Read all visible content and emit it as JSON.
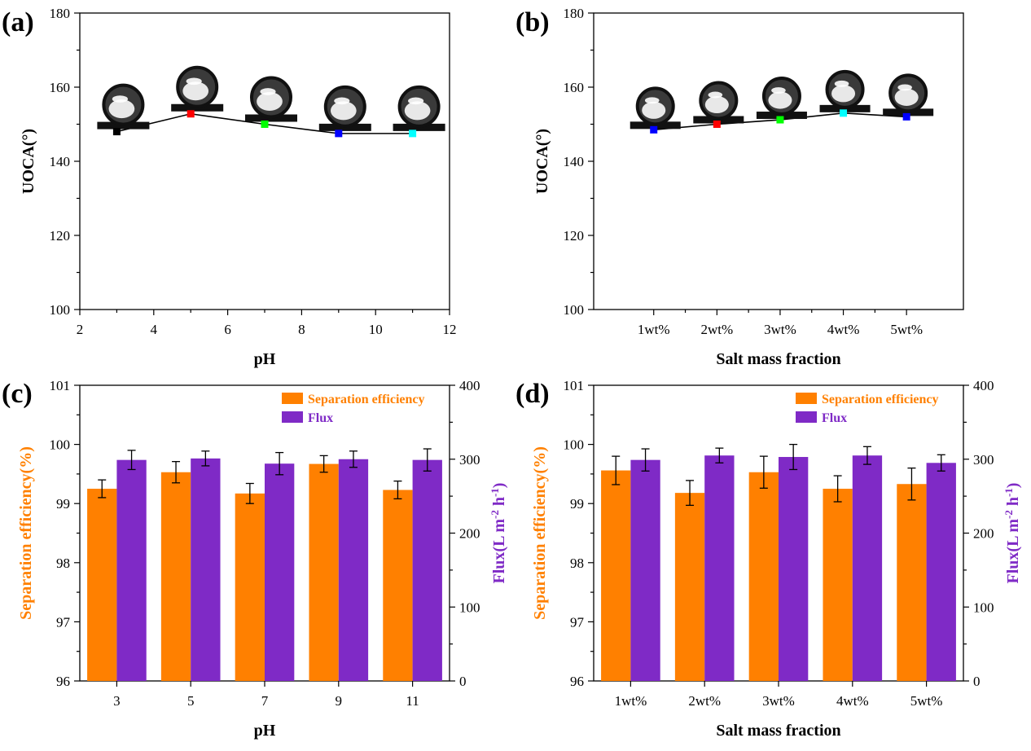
{
  "colors": {
    "orange": "#FF8000",
    "purple": "#7F2AC6",
    "black": "#000000"
  },
  "chart_data": [
    {
      "panel": "(a)",
      "type": "line",
      "xlabel": "pH",
      "ylabel": "UOCA(°)",
      "xlim": [
        2,
        12
      ],
      "ylim": [
        100,
        180
      ],
      "xticks": [
        "2",
        "4",
        "6",
        "8",
        "10",
        "12"
      ],
      "yticks": [
        "100",
        "120",
        "140",
        "160",
        "180"
      ],
      "x": [
        3,
        5,
        7,
        9,
        11
      ],
      "values": [
        148,
        152.8,
        150,
        147.5,
        147.5
      ],
      "marker_colors": [
        "#000000",
        "#FF0000",
        "#00FF00",
        "#0000FF",
        "#00FFFF"
      ],
      "insets": "droplet-photo"
    },
    {
      "panel": "(b)",
      "type": "line",
      "xlabel": "Salt mass fraction",
      "ylabel": "UOCA(°)",
      "ylim": [
        100,
        180
      ],
      "yticks": [
        "100",
        "120",
        "140",
        "160",
        "180"
      ],
      "categories": [
        "1wt%",
        "2wt%",
        "3wt%",
        "4wt%",
        "5wt%"
      ],
      "values": [
        148.5,
        150,
        151.2,
        153,
        152
      ],
      "marker_colors": [
        "#0000FF",
        "#FF0000",
        "#00FF00",
        "#00FFFF",
        "#0000FF"
      ],
      "insets": "droplet-photo"
    },
    {
      "panel": "(c)",
      "type": "bar",
      "xlabel": "pH",
      "ylabel": "Separation efficiency(%)",
      "y2label": "Flux(L m⁻² h⁻¹)",
      "ylim": [
        96,
        101
      ],
      "y2lim": [
        0,
        400
      ],
      "yticks": [
        "96",
        "97",
        "98",
        "99",
        "100",
        "101"
      ],
      "y2ticks": [
        "0",
        "100",
        "200",
        "300",
        "400"
      ],
      "categories": [
        "3",
        "5",
        "7",
        "9",
        "11"
      ],
      "series": [
        {
          "name": "Separation efficiency",
          "axis": "left",
          "values": [
            99.25,
            99.53,
            99.17,
            99.67,
            99.23
          ],
          "errors": [
            0.15,
            0.18,
            0.17,
            0.14,
            0.15
          ]
        },
        {
          "name": "Flux",
          "axis": "right",
          "values": [
            299,
            301,
            294,
            300,
            299
          ],
          "errors": [
            13,
            10,
            15,
            11,
            15
          ]
        }
      ]
    },
    {
      "panel": "(d)",
      "type": "bar",
      "xlabel": "Salt mass fraction",
      "ylabel": "Separation efficiency(%)",
      "y2label": "Flux(L m⁻² h⁻¹)",
      "ylim": [
        96,
        101
      ],
      "y2lim": [
        0,
        400
      ],
      "yticks": [
        "96",
        "97",
        "98",
        "99",
        "100",
        "101"
      ],
      "y2ticks": [
        "0",
        "100",
        "200",
        "300",
        "400"
      ],
      "categories": [
        "1wt%",
        "2wt%",
        "3wt%",
        "4wt%",
        "5wt%"
      ],
      "series": [
        {
          "name": "Separation efficiency",
          "axis": "left",
          "values": [
            99.56,
            99.18,
            99.53,
            99.25,
            99.33
          ],
          "errors": [
            0.24,
            0.21,
            0.27,
            0.22,
            0.27
          ]
        },
        {
          "name": "Flux",
          "axis": "right",
          "values": [
            299,
            305,
            303,
            305,
            295
          ],
          "errors": [
            15,
            10,
            17,
            12,
            11
          ]
        }
      ]
    }
  ]
}
